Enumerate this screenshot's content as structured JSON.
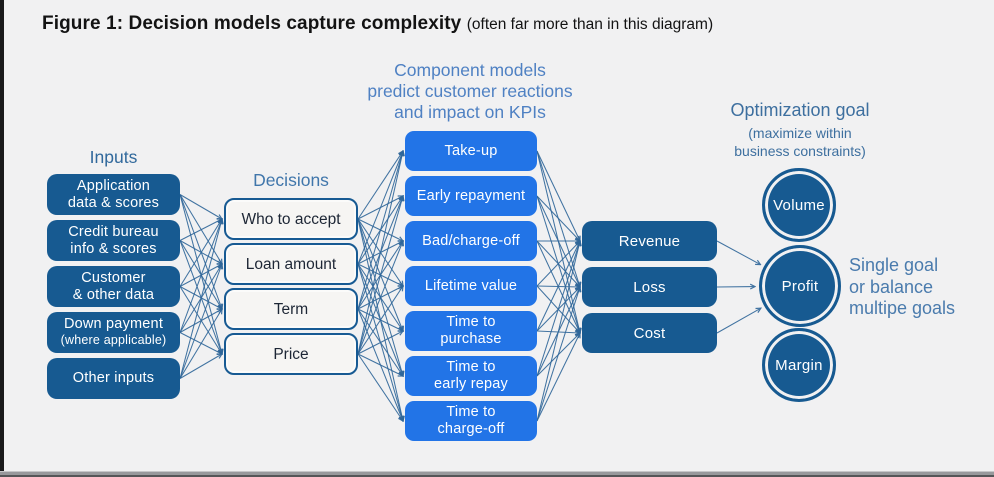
{
  "page": {
    "title_main": "Figure 1: Decision models capture complexity ",
    "title_paren": "(often far more than in this diagram)"
  },
  "columns": {
    "inputs": {
      "header": "Inputs",
      "items": [
        {
          "label": "Application\ndata & scores"
        },
        {
          "label": "Credit bureau\ninfo & scores"
        },
        {
          "label": "Customer\n& other data"
        },
        {
          "label": "Down payment",
          "sublabel": "(where applicable)"
        },
        {
          "label": "Other inputs"
        }
      ]
    },
    "decisions": {
      "header": "Decisions",
      "items": [
        {
          "label": "Who to accept"
        },
        {
          "label": "Loan amount"
        },
        {
          "label": "Term"
        },
        {
          "label": "Price"
        }
      ]
    },
    "components": {
      "header": "Component models\npredict customer reactions\nand impact on KPIs",
      "items": [
        {
          "label": "Take-up"
        },
        {
          "label": "Early repayment"
        },
        {
          "label": "Bad/charge-off"
        },
        {
          "label": "Lifetime value"
        },
        {
          "label": "Time  to\npurchase"
        },
        {
          "label": "Time  to\nearly repay"
        },
        {
          "label": "Time  to\ncharge-off"
        }
      ]
    },
    "kpis": {
      "items": [
        {
          "label": "Revenue"
        },
        {
          "label": "Loss"
        },
        {
          "label": "Cost"
        }
      ]
    },
    "goals": {
      "header_main": "Optimization goal",
      "header_sub": "(maximize within\nbusiness constraints)",
      "items": [
        {
          "label": "Volume"
        },
        {
          "label": "Profit"
        },
        {
          "label": "Margin"
        }
      ],
      "side_note": "Single goal\nor balance\nmultipe goals"
    }
  },
  "connections": [
    {
      "from": "inputs",
      "to": "decisions",
      "type": "bipartite"
    },
    {
      "from": "decisions",
      "to": "components",
      "type": "bipartite"
    },
    {
      "from": "components",
      "to": "kpis",
      "type": "bipartite"
    },
    {
      "from": "kpis",
      "to": "goal-profit",
      "type": "converge"
    }
  ],
  "colors": {
    "dark_box_blue": "#175a91",
    "bright_box_blue": "#2274e7",
    "line_blue": "#2f6699",
    "header_blue": "#31699c",
    "component_header_blue": "#4f81c3",
    "optimization_header_blue": "#3d6f9f",
    "side_note_blue": "#4a7bad",
    "background": "#f1f1f2"
  }
}
